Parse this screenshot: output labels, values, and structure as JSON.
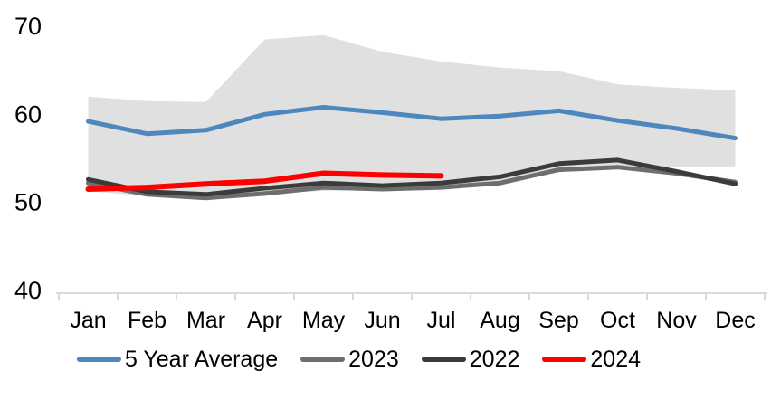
{
  "chart_data": {
    "type": "line",
    "title": "",
    "xlabel": "",
    "ylabel": "",
    "categories": [
      "Jan",
      "Feb",
      "Mar",
      "Apr",
      "May",
      "Jun",
      "Jul",
      "Aug",
      "Sep",
      "Oct",
      "Nov",
      "Dec"
    ],
    "yticks": [
      40,
      50,
      60,
      70
    ],
    "ylim": [
      40,
      70
    ],
    "grid": false,
    "legend_position": "bottom",
    "axis_color": "#D9D9D9",
    "text_color": "#000000",
    "band": {
      "name": "5-year-range-band",
      "color": "#E0E0E0",
      "top": [
        62.0,
        61.5,
        61.4,
        68.5,
        69.0,
        67.1,
        66.0,
        65.3,
        64.9,
        63.4,
        63.0,
        62.7
      ],
      "bottom": [
        51.3,
        50.7,
        50.4,
        51.0,
        51.3,
        51.5,
        51.6,
        52.5,
        53.7,
        53.8,
        54.0,
        54.1
      ]
    },
    "series": [
      {
        "name": "5 Year Average",
        "color": "#4E87BE",
        "values": [
          59.2,
          57.8,
          58.2,
          60.0,
          60.8,
          60.2,
          59.5,
          59.8,
          60.4,
          59.3,
          58.4,
          57.3
        ]
      },
      {
        "name": "2023",
        "color": "#6E6E6E",
        "values": [
          52.2,
          50.9,
          50.5,
          51.0,
          51.7,
          51.5,
          51.7,
          52.2,
          53.7,
          54.0,
          53.3,
          52.3
        ]
      },
      {
        "name": "2022",
        "color": "#3B3B3B",
        "values": [
          52.6,
          51.2,
          50.9,
          51.6,
          52.2,
          51.9,
          52.2,
          52.9,
          54.4,
          54.8,
          53.5,
          52.1
        ]
      },
      {
        "name": "2024",
        "color": "#FF0000",
        "values": [
          51.5,
          51.7,
          52.1,
          52.4,
          53.3,
          53.1,
          53.0
        ]
      }
    ]
  }
}
